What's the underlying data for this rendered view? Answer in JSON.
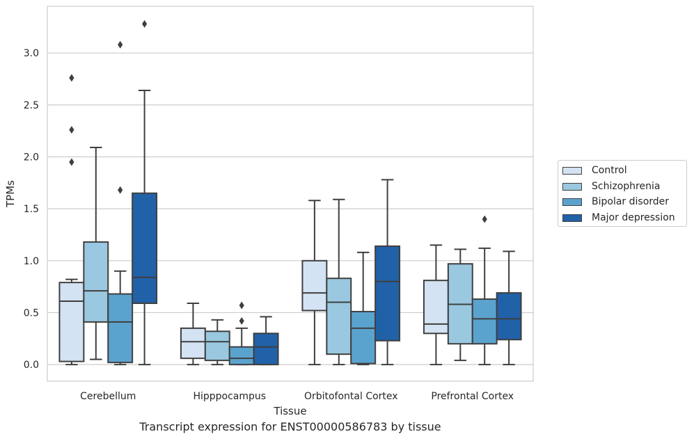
{
  "chart_data": {
    "type": "boxplot",
    "title": "",
    "caption": "Transcript expression for ENST00000586783 by tissue",
    "xlabel": "Tissue",
    "ylabel": "TPMs",
    "ylim": [
      -0.16,
      3.45
    ],
    "yticks": [
      0.0,
      0.5,
      1.0,
      1.5,
      2.0,
      2.5,
      3.0
    ],
    "ytick_labels": [
      "0.0",
      "0.5",
      "1.0",
      "1.5",
      "2.0",
      "2.5",
      "3.0"
    ],
    "grid": "horizontal",
    "legend_position": "right",
    "categories": [
      "Cerebellum",
      "Hipppocampus",
      "Orbitofontal Cortex",
      "Prefrontal Cortex"
    ],
    "series": [
      {
        "name": "Control",
        "color": "#d3e3f3",
        "boxes": [
          {
            "whislo": 0.0,
            "q1": 0.03,
            "med": 0.61,
            "q3": 0.79,
            "whishi": 0.82,
            "fliers": [
              1.95,
              2.26,
              2.76
            ]
          },
          {
            "whislo": 0.0,
            "q1": 0.06,
            "med": 0.22,
            "q3": 0.35,
            "whishi": 0.59,
            "fliers": []
          },
          {
            "whislo": 0.0,
            "q1": 0.52,
            "med": 0.69,
            "q3": 1.0,
            "whishi": 1.58,
            "fliers": []
          },
          {
            "whislo": 0.0,
            "q1": 0.3,
            "med": 0.39,
            "q3": 0.81,
            "whishi": 1.15,
            "fliers": []
          }
        ]
      },
      {
        "name": "Schizophrenia",
        "color": "#9ac8e0",
        "boxes": [
          {
            "whislo": 0.05,
            "q1": 0.41,
            "med": 0.71,
            "q3": 1.18,
            "whishi": 2.09,
            "fliers": []
          },
          {
            "whislo": 0.0,
            "q1": 0.04,
            "med": 0.22,
            "q3": 0.32,
            "whishi": 0.43,
            "fliers": []
          },
          {
            "whislo": 0.0,
            "q1": 0.1,
            "med": 0.6,
            "q3": 0.83,
            "whishi": 1.59,
            "fliers": []
          },
          {
            "whislo": 0.04,
            "q1": 0.2,
            "med": 0.58,
            "q3": 0.97,
            "whishi": 1.11,
            "fliers": []
          }
        ]
      },
      {
        "name": "Bipolar disorder",
        "color": "#5ba3cf",
        "boxes": [
          {
            "whislo": 0.0,
            "q1": 0.02,
            "med": 0.41,
            "q3": 0.68,
            "whishi": 0.9,
            "fliers": [
              1.68,
              3.08
            ]
          },
          {
            "whislo": 0.0,
            "q1": 0.0,
            "med": 0.06,
            "q3": 0.17,
            "whishi": 0.35,
            "fliers": [
              0.42,
              0.57
            ]
          },
          {
            "whislo": 0.0,
            "q1": 0.01,
            "med": 0.35,
            "q3": 0.51,
            "whishi": 1.08,
            "fliers": []
          },
          {
            "whislo": 0.0,
            "q1": 0.2,
            "med": 0.44,
            "q3": 0.63,
            "whishi": 1.12,
            "fliers": [
              1.4
            ]
          }
        ]
      },
      {
        "name": "Major depression",
        "color": "#2161a8",
        "boxes": [
          {
            "whislo": 0.0,
            "q1": 0.59,
            "med": 0.84,
            "q3": 1.65,
            "whishi": 2.64,
            "fliers": [
              3.28
            ]
          },
          {
            "whislo": 0.0,
            "q1": 0.0,
            "med": 0.17,
            "q3": 0.3,
            "whishi": 0.46,
            "fliers": []
          },
          {
            "whislo": 0.0,
            "q1": 0.23,
            "med": 0.8,
            "q3": 1.14,
            "whishi": 1.78,
            "fliers": []
          },
          {
            "whislo": 0.0,
            "q1": 0.24,
            "med": 0.44,
            "q3": 0.69,
            "whishi": 1.09,
            "fliers": []
          }
        ]
      }
    ]
  }
}
